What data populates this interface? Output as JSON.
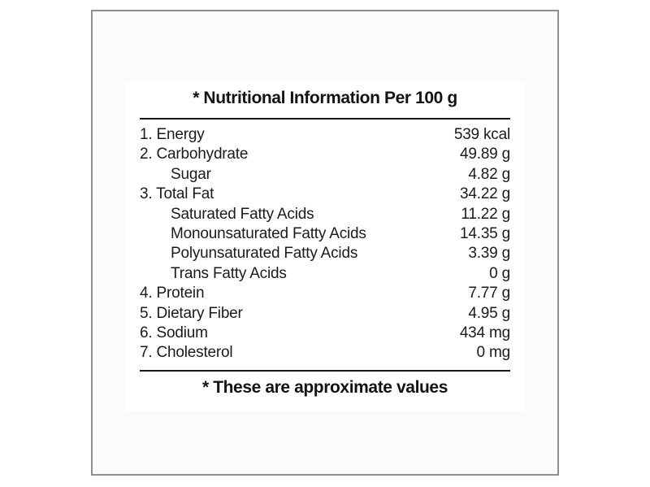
{
  "page": {
    "background": "#ffffff"
  },
  "frame": {
    "border_color": "#8f8f8f",
    "background": "#fbfbfb"
  },
  "label": {
    "title": "* Nutritional Information Per 100 g",
    "footer": "* These are approximate values",
    "text_color": "#1b1b1b",
    "rule_color": "#161616",
    "rows": [
      {
        "label": "1. Energy",
        "value": "539 kcal",
        "indent": false
      },
      {
        "label": "2. Carbohydrate",
        "value": "49.89 g",
        "indent": false
      },
      {
        "label": "Sugar",
        "value": "4.82 g",
        "indent": true
      },
      {
        "label": "3. Total Fat",
        "value": "34.22 g",
        "indent": false
      },
      {
        "label": "Saturated Fatty Acids",
        "value": "11.22 g",
        "indent": true
      },
      {
        "label": "Monounsaturated Fatty Acids",
        "value": "14.35 g",
        "indent": true
      },
      {
        "label": "Polyunsaturated Fatty Acids",
        "value": "3.39 g",
        "indent": true
      },
      {
        "label": "Trans Fatty Acids",
        "value": "0 g",
        "indent": true
      },
      {
        "label": "4. Protein",
        "value": "7.77 g",
        "indent": false
      },
      {
        "label": "5. Dietary Fiber",
        "value": "4.95 g",
        "indent": false
      },
      {
        "label": "6. Sodium",
        "value": "434 mg",
        "indent": false
      },
      {
        "label": "7. Cholesterol",
        "value": "0 mg",
        "indent": false
      }
    ]
  }
}
